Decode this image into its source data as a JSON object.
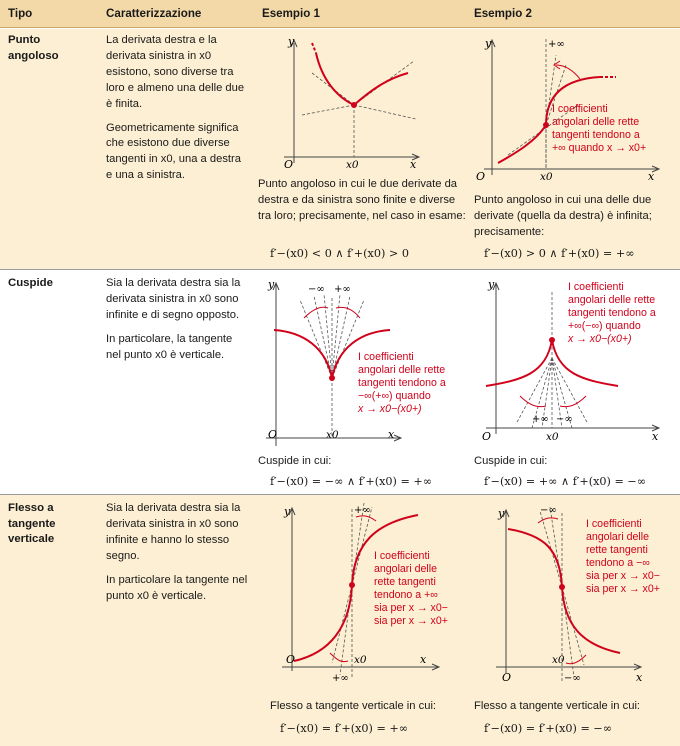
{
  "headers": {
    "tipo": "Tipo",
    "caratterizzazione": "Caratterizzazione",
    "esempio1": "Esempio 1",
    "esempio2": "Esempio 2"
  },
  "rows": [
    {
      "type": "Punto angoloso",
      "desc": [
        "La derivata destra e la derivata sinistra in x0 esistono, sono diverse tra loro e almeno una delle due è finita.",
        "Geometricamente significa che esistono due diverse tangenti in x0, una a destra e una a sinistra."
      ],
      "ex1_caption": "Punto angoloso in cui le due derivate da destra e da sinistra sono finite e diverse tra loro; precisamente, nel caso in esame:",
      "ex1_formula": "f′−(x0) < 0 ∧ f′+(x0) > 0",
      "ex2_caption": "Punto angoloso in cui una delle due derivate (quella da destra) è infinita; precisamente:",
      "ex2_formula": "f′−(x0) > 0 ∧ f′+(x0) = +∞",
      "ex2_note": [
        "I coefficienti",
        "angolari delle rette",
        "tangenti tendono a",
        "+∞ quando x → x0+"
      ]
    },
    {
      "type": "Cuspide",
      "desc": [
        "Sia la derivata destra sia la derivata sinistra in x0 sono infinite e di segno opposto.",
        "In particolare, la tangente nel punto x0 è verticale."
      ],
      "ex1_caption": "Cuspide in cui:",
      "ex1_formula": "f′−(x0) = −∞ ∧ f′+(x0) = +∞",
      "ex1_note": [
        "I coefficienti",
        "angolari delle rette",
        "tangenti tendono a",
        "−∞(+∞) quando",
        "x → x0−(x0+)"
      ],
      "ex2_caption": "Cuspide in cui:",
      "ex2_formula": "f′−(x0) = +∞ ∧ f′+(x0) = −∞",
      "ex2_note": [
        "I coefficienti",
        "angolari delle rette",
        "tangenti tendono a",
        "+∞(−∞) quando",
        "x → x0−(x0+)"
      ]
    },
    {
      "type": "Flesso a tangente verticale",
      "desc": [
        "Sia la derivata destra sia la derivata sinistra in x0 sono infinite e hanno lo stesso segno.",
        "In particolare la tangente nel punto x0 è verticale."
      ],
      "ex1_caption": "Flesso a tangente verticale in cui:",
      "ex1_formula": "f′−(x0) = f′+(x0) = +∞",
      "ex1_note": [
        "I coefficienti",
        "angolari delle",
        "rette tangenti",
        "tendono a +∞",
        "sia per x → x0−",
        "sia per x → x0+"
      ],
      "ex2_caption": "Flesso a tangente verticale in cui:",
      "ex2_formula": "f′−(x0) = f′+(x0) = −∞",
      "ex2_note": [
        "I coefficienti",
        "angolari delle",
        "rette tangenti",
        "tendono a −∞",
        "sia per x → x0−",
        "sia per x → x0+"
      ]
    }
  ],
  "labels": {
    "x": "x",
    "y": "y",
    "origin": "O",
    "x0": "x0",
    "plus_inf": "+∞",
    "minus_inf": "−∞"
  },
  "colors": {
    "header": "#f3d9a7",
    "tint": "#fcefd3",
    "curve": "#d0021b"
  }
}
